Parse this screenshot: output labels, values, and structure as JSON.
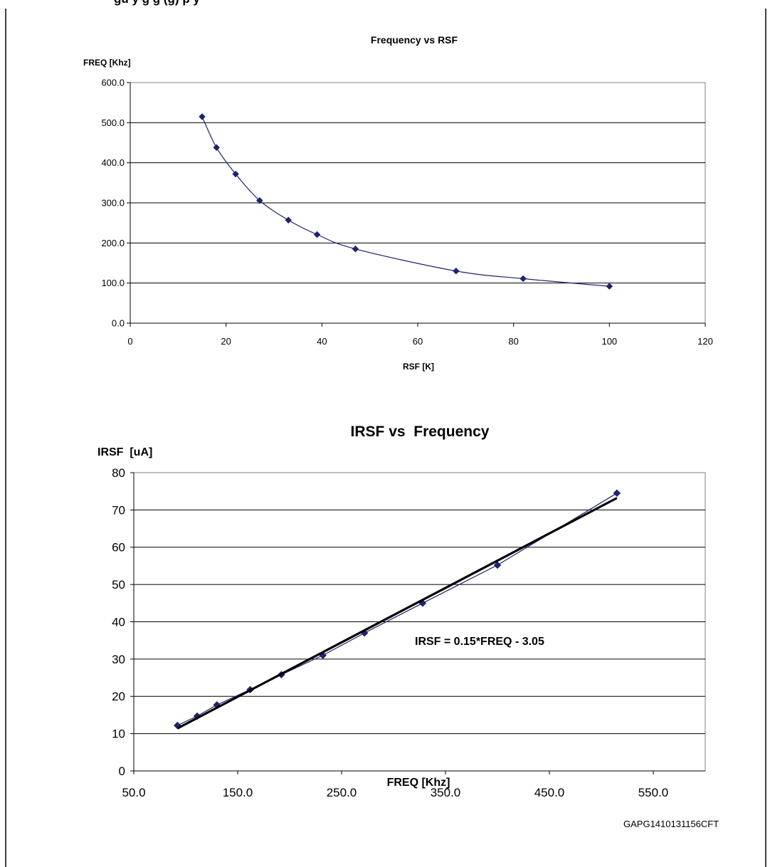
{
  "header": {
    "caption_fragment": "gu          y  g       g            (g)      p  y"
  },
  "figure_ref": "GAPG1410131156CFT",
  "colors": {
    "series": "#1F2370",
    "trendline": "#000000",
    "grid": "#000000",
    "plot_border": "#808080"
  },
  "chart_data": [
    {
      "type": "scatter",
      "title": "Frequency vs RSF",
      "xlabel": "RSF [K]",
      "ylabel": "FREQ [Khz]",
      "xlim": [
        0,
        120
      ],
      "ylim": [
        0,
        600
      ],
      "xticks": [
        "0",
        "20",
        "40",
        "60",
        "80",
        "100",
        "120"
      ],
      "yticks": [
        "0.0",
        "100.0",
        "200.0",
        "300.0",
        "400.0",
        "500.0",
        "600.0"
      ],
      "grid": "horizontal",
      "marker": "diamond",
      "line": "smooth",
      "series": [
        {
          "x": [
            15,
            18,
            22,
            27,
            33,
            39,
            47,
            68,
            82,
            100
          ],
          "y": [
            515,
            438,
            372,
            306,
            257,
            221,
            185,
            130,
            111,
            92
          ]
        }
      ]
    },
    {
      "type": "scatter",
      "title": "IRSF vs  Frequency",
      "xlabel": "FREQ [Khz]",
      "ylabel": "IRSF  [uA]",
      "xlim": [
        50,
        600
      ],
      "ylim": [
        0,
        80
      ],
      "xticks": [
        "50.0",
        "150.0",
        "250.0",
        "350.0",
        "450.0",
        "550.0"
      ],
      "yticks": [
        "0",
        "10",
        "20",
        "30",
        "40",
        "50",
        "60",
        "70",
        "80"
      ],
      "grid": "horizontal",
      "marker": "diamond",
      "annotation": "IRSF = 0.15*FREQ - 3.05",
      "trendline": {
        "x": [
          92,
          515
        ],
        "y": [
          11.4,
          73.2
        ]
      },
      "series": [
        {
          "x": [
            92,
            111,
            130,
            162,
            192,
            232,
            272,
            328,
            400,
            515
          ],
          "y": [
            12.2,
            14.7,
            17.7,
            21.8,
            25.8,
            31.0,
            37.0,
            45.0,
            55.2,
            74.5
          ]
        }
      ]
    }
  ]
}
